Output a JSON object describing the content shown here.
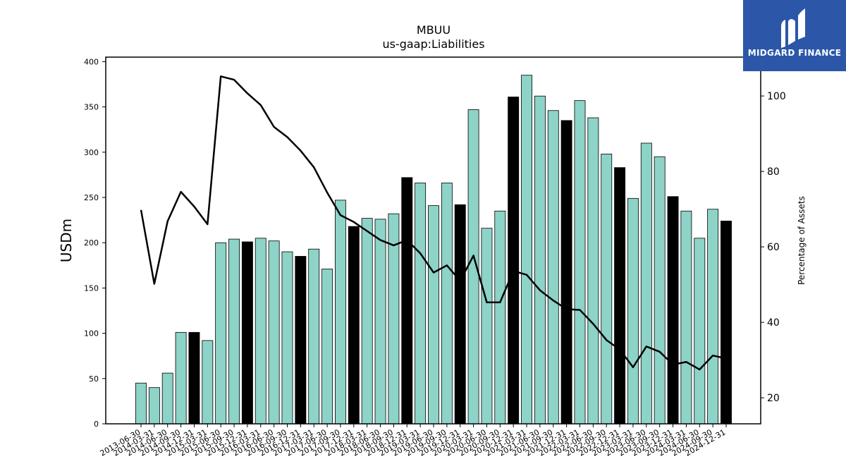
{
  "brand": {
    "name": "MIDGARD FINANCE",
    "color": "#2c57a8"
  },
  "chart_data": {
    "type": "bar",
    "title": "MBUU",
    "subtitle": "us-gaap:Liabilities",
    "ylabel": "USDm",
    "y2label": "Percentage of Assets",
    "ylim": [
      0,
      405
    ],
    "y2lim": [
      13.1,
      110.3
    ],
    "yticks": [
      0,
      50,
      100,
      150,
      200,
      250,
      300,
      350,
      400
    ],
    "y2ticks": [
      20,
      40,
      60,
      80,
      100
    ],
    "colors": {
      "bar": "#8dd3c7",
      "bar_highlight": "#000000",
      "line": "#000000"
    },
    "categories": [
      "2013-06-30",
      "2014-03-31",
      "2014-06-30",
      "2014-09-30",
      "2014-12-31",
      "2015-03-31",
      "2015-06-30",
      "2015-09-30",
      "2015-12-31",
      "2016-03-31",
      "2016-06-30",
      "2016-09-30",
      "2016-12-31",
      "2017-03-31",
      "2017-06-30",
      "2017-09-30",
      "2017-12-31",
      "2018-03-31",
      "2018-06-30",
      "2018-09-30",
      "2018-12-31",
      "2019-03-31",
      "2019-06-30",
      "2019-09-30",
      "2019-12-31",
      "2020-03-31",
      "2020-06-30",
      "2020-09-30",
      "2020-12-31",
      "2021-03-31",
      "2021-06-30",
      "2021-09-30",
      "2021-12-31",
      "2022-03-31",
      "2022-06-30",
      "2022-09-30",
      "2022-12-31",
      "2023-03-31",
      "2023-06-30",
      "2023-09-30",
      "2023-12-31",
      "2024-03-31",
      "2024-06-30",
      "2024-09-30",
      "2024-12-31"
    ],
    "series": [
      {
        "type": "bar",
        "axis": "left",
        "values": [
          45,
          40,
          56,
          101,
          101,
          92,
          200,
          204,
          201,
          205,
          202,
          190,
          185,
          193,
          171,
          247,
          218,
          227,
          226,
          232,
          272,
          266,
          241,
          266,
          242,
          347,
          216,
          235,
          361,
          385,
          362,
          346,
          335,
          357,
          338,
          298,
          283,
          249,
          310,
          295,
          251,
          235,
          205,
          237,
          224
        ],
        "highlighted": [
          false,
          false,
          false,
          false,
          true,
          false,
          false,
          false,
          true,
          false,
          false,
          false,
          true,
          false,
          false,
          false,
          true,
          false,
          false,
          false,
          true,
          false,
          false,
          false,
          true,
          false,
          false,
          false,
          true,
          false,
          false,
          false,
          true,
          false,
          false,
          false,
          true,
          false,
          false,
          false,
          true,
          false,
          false,
          false,
          true
        ]
      },
      {
        "type": "line",
        "axis": "right",
        "values": [
          69.8,
          50.2,
          66.8,
          74.6,
          70.7,
          66.0,
          105.2,
          104.3,
          100.7,
          97.6,
          91.8,
          89.1,
          85.5,
          81.1,
          74.4,
          68.4,
          66.6,
          64.2,
          61.8,
          60.4,
          61.8,
          58.3,
          53.2,
          55.1,
          51.0,
          57.7,
          45.3,
          45.3,
          53.6,
          52.6,
          48.5,
          45.8,
          43.5,
          43.3,
          39.6,
          35.3,
          32.8,
          28.1,
          33.6,
          32.2,
          28.8,
          29.5,
          27.5,
          31.2,
          30.4
        ]
      }
    ]
  }
}
